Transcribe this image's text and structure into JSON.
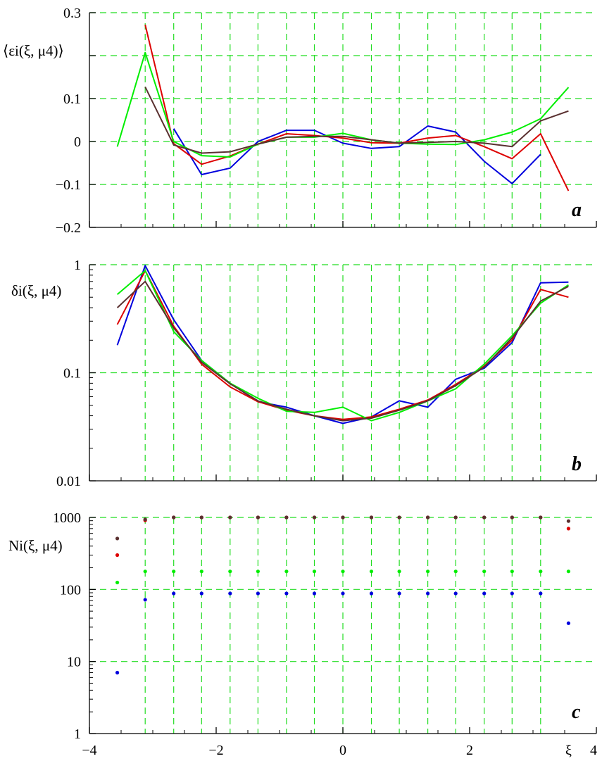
{
  "colors": {
    "grid": "#22dd22",
    "axis": "#000000"
  },
  "series_colors": [
    "#0000dd",
    "#dd0000",
    "#00ee00",
    "#5a3030"
  ],
  "x_axis": {
    "min": -4,
    "max": 4,
    "ticks": [
      -4,
      -2,
      0,
      2,
      4
    ],
    "tick_labels": [
      "−4",
      "−2",
      "0",
      "2",
      "4"
    ],
    "label": "ξ"
  },
  "x_grid": [
    -3.12,
    -2.67,
    -2.23,
    -1.78,
    -1.34,
    -0.89,
    -0.45,
    0,
    0.45,
    0.89,
    1.34,
    1.78,
    2.23,
    2.67,
    3.12
  ],
  "chart_data": [
    {
      "type": "line",
      "panel": "a",
      "ylabel": "⟨εi(ξ, μ4)⟩",
      "ylim": [
        -0.2,
        0.3
      ],
      "yscale": "linear",
      "y_ticks": [
        -0.2,
        -0.1,
        0,
        0.1,
        0.2,
        0.3
      ],
      "y_tick_labels": [
        "−0.2",
        "−0.1",
        "0",
        "0.1",
        "",
        "0.3"
      ],
      "y_grid": [
        -0.1,
        0,
        0.1,
        0.2,
        0.3
      ],
      "grid": true,
      "series": [
        {
          "x": [
            -2.67,
            -2.23,
            -1.78,
            -1.34,
            -0.89,
            -0.45,
            0,
            0.45,
            0.89,
            1.34,
            1.78,
            2.23,
            2.67,
            3.12
          ],
          "y": [
            0.03,
            -0.077,
            -0.062,
            0.0,
            0.026,
            0.026,
            -0.004,
            -0.016,
            -0.012,
            0.036,
            0.022,
            -0.046,
            -0.098,
            -0.03
          ]
        },
        {
          "x": [
            -3.12,
            -2.67,
            -2.23,
            -1.78,
            -1.34,
            -0.89,
            -0.45,
            0,
            0.45,
            0.89,
            1.34,
            1.78,
            2.23,
            2.67,
            3.12,
            3.56
          ],
          "y": [
            0.272,
            -0.005,
            -0.053,
            -0.034,
            -0.006,
            0.018,
            0.014,
            0.008,
            -0.003,
            -0.004,
            0.008,
            0.014,
            -0.012,
            -0.04,
            0.018,
            -0.115
          ]
        },
        {
          "x": [
            -3.56,
            -3.12,
            -2.67,
            -2.23,
            -1.78,
            -1.34,
            -0.89,
            -0.45,
            0,
            0.45,
            0.89,
            1.34,
            1.78,
            2.23,
            2.67,
            3.12,
            3.56
          ],
          "y": [
            -0.012,
            0.207,
            0.0,
            -0.033,
            -0.036,
            -0.006,
            0.01,
            0.01,
            0.019,
            0.004,
            -0.004,
            -0.006,
            -0.007,
            0.004,
            0.022,
            0.053,
            0.126
          ]
        },
        {
          "x": [
            -3.12,
            -2.67,
            -2.23,
            -1.78,
            -1.34,
            -0.89,
            -0.45,
            0,
            0.45,
            0.89,
            1.34,
            1.78,
            2.23,
            2.67,
            3.12,
            3.56
          ],
          "y": [
            0.127,
            -0.008,
            -0.027,
            -0.024,
            -0.006,
            0.01,
            0.012,
            0.012,
            0.004,
            -0.004,
            -0.002,
            0.0,
            -0.004,
            -0.012,
            0.048,
            0.071
          ]
        }
      ]
    },
    {
      "type": "line",
      "panel": "b",
      "ylabel": "δi(ξ, μ4)",
      "ylim": [
        0.01,
        1
      ],
      "yscale": "log",
      "y_ticks": [
        0.01,
        0.1,
        1
      ],
      "y_tick_labels": [
        "0.01",
        "0.1",
        "1"
      ],
      "y_grid": [
        0.1,
        1
      ],
      "grid": true,
      "series": [
        {
          "x": [
            -3.56,
            -3.12,
            -2.67,
            -2.23,
            -1.78,
            -1.34,
            -0.89,
            -0.45,
            0,
            0.45,
            0.89,
            1.34,
            1.78,
            2.23,
            2.67,
            3.12,
            3.56
          ],
          "y": [
            0.18,
            0.98,
            0.31,
            0.13,
            0.08,
            0.054,
            0.048,
            0.04,
            0.034,
            0.039,
            0.055,
            0.048,
            0.087,
            0.11,
            0.19,
            0.68,
            0.69
          ]
        },
        {
          "x": [
            -3.56,
            -3.12,
            -2.67,
            -2.23,
            -1.78,
            -1.34,
            -0.89,
            -0.45,
            0,
            0.45,
            0.89,
            1.34,
            1.78,
            2.23,
            2.67,
            3.12,
            3.56
          ],
          "y": [
            0.28,
            0.88,
            0.27,
            0.12,
            0.074,
            0.054,
            0.045,
            0.04,
            0.037,
            0.039,
            0.046,
            0.056,
            0.078,
            0.115,
            0.2,
            0.59,
            0.5
          ]
        },
        {
          "x": [
            -3.56,
            -3.12,
            -2.67,
            -2.23,
            -1.78,
            -1.34,
            -0.89,
            -0.45,
            0,
            0.45,
            0.89,
            1.34,
            1.78,
            2.23,
            2.67,
            3.12,
            3.56
          ],
          "y": [
            0.53,
            0.88,
            0.24,
            0.13,
            0.08,
            0.058,
            0.044,
            0.043,
            0.048,
            0.036,
            0.043,
            0.055,
            0.071,
            0.12,
            0.22,
            0.44,
            0.65
          ]
        },
        {
          "x": [
            -3.56,
            -3.12,
            -2.67,
            -2.23,
            -1.78,
            -1.34,
            -0.89,
            -0.45,
            0,
            0.45,
            0.89,
            1.34,
            1.78,
            2.23,
            2.67,
            3.12,
            3.56
          ],
          "y": [
            0.4,
            0.7,
            0.26,
            0.125,
            0.079,
            0.055,
            0.046,
            0.04,
            0.036,
            0.038,
            0.045,
            0.055,
            0.076,
            0.113,
            0.21,
            0.46,
            0.63
          ]
        }
      ]
    },
    {
      "type": "scatter",
      "panel": "c",
      "ylabel": "Ni(ξ, μ4)",
      "ylim": [
        1,
        1000
      ],
      "yscale": "log",
      "y_ticks": [
        1,
        10,
        100,
        1000
      ],
      "y_tick_labels": [
        "1",
        "10",
        "100",
        "1000"
      ],
      "y_grid": [
        10,
        100,
        1000
      ],
      "grid": true,
      "series": [
        {
          "x": [
            -3.56,
            -3.12,
            -2.67,
            -2.23,
            -1.78,
            -1.34,
            -0.89,
            -0.45,
            0,
            0.45,
            0.89,
            1.34,
            1.78,
            2.23,
            2.67,
            3.12,
            3.56
          ],
          "y": [
            7,
            72,
            88,
            88,
            88,
            88,
            88,
            88,
            88,
            88,
            88,
            88,
            88,
            88,
            88,
            88,
            34
          ]
        },
        {
          "x": [
            -3.56,
            -3.12,
            -2.67,
            -2.23,
            -1.78,
            -1.34,
            -0.89,
            -0.45,
            0,
            0.45,
            0.89,
            1.34,
            1.78,
            2.23,
            2.67,
            3.12,
            3.56
          ],
          "y": [
            300,
            910,
            1000,
            1000,
            1000,
            1000,
            1000,
            1000,
            1000,
            1000,
            1000,
            1000,
            1000,
            1000,
            1000,
            1000,
            700
          ]
        },
        {
          "x": [
            -3.56,
            -3.12,
            -2.67,
            -2.23,
            -1.78,
            -1.34,
            -0.89,
            -0.45,
            0,
            0.45,
            0.89,
            1.34,
            1.78,
            2.23,
            2.67,
            3.12,
            3.56
          ],
          "y": [
            125,
            178,
            178,
            178,
            178,
            178,
            178,
            178,
            178,
            178,
            178,
            178,
            178,
            178,
            178,
            178,
            178
          ]
        },
        {
          "x": [
            -3.56,
            -3.12,
            -2.67,
            -2.23,
            -1.78,
            -1.34,
            -0.89,
            -0.45,
            0,
            0.45,
            0.89,
            1.34,
            1.78,
            2.23,
            2.67,
            3.12,
            3.56
          ],
          "y": [
            510,
            940,
            1000,
            1000,
            1000,
            1000,
            1000,
            1000,
            1000,
            1000,
            1000,
            1000,
            1000,
            1000,
            1000,
            1000,
            890
          ]
        }
      ]
    }
  ]
}
